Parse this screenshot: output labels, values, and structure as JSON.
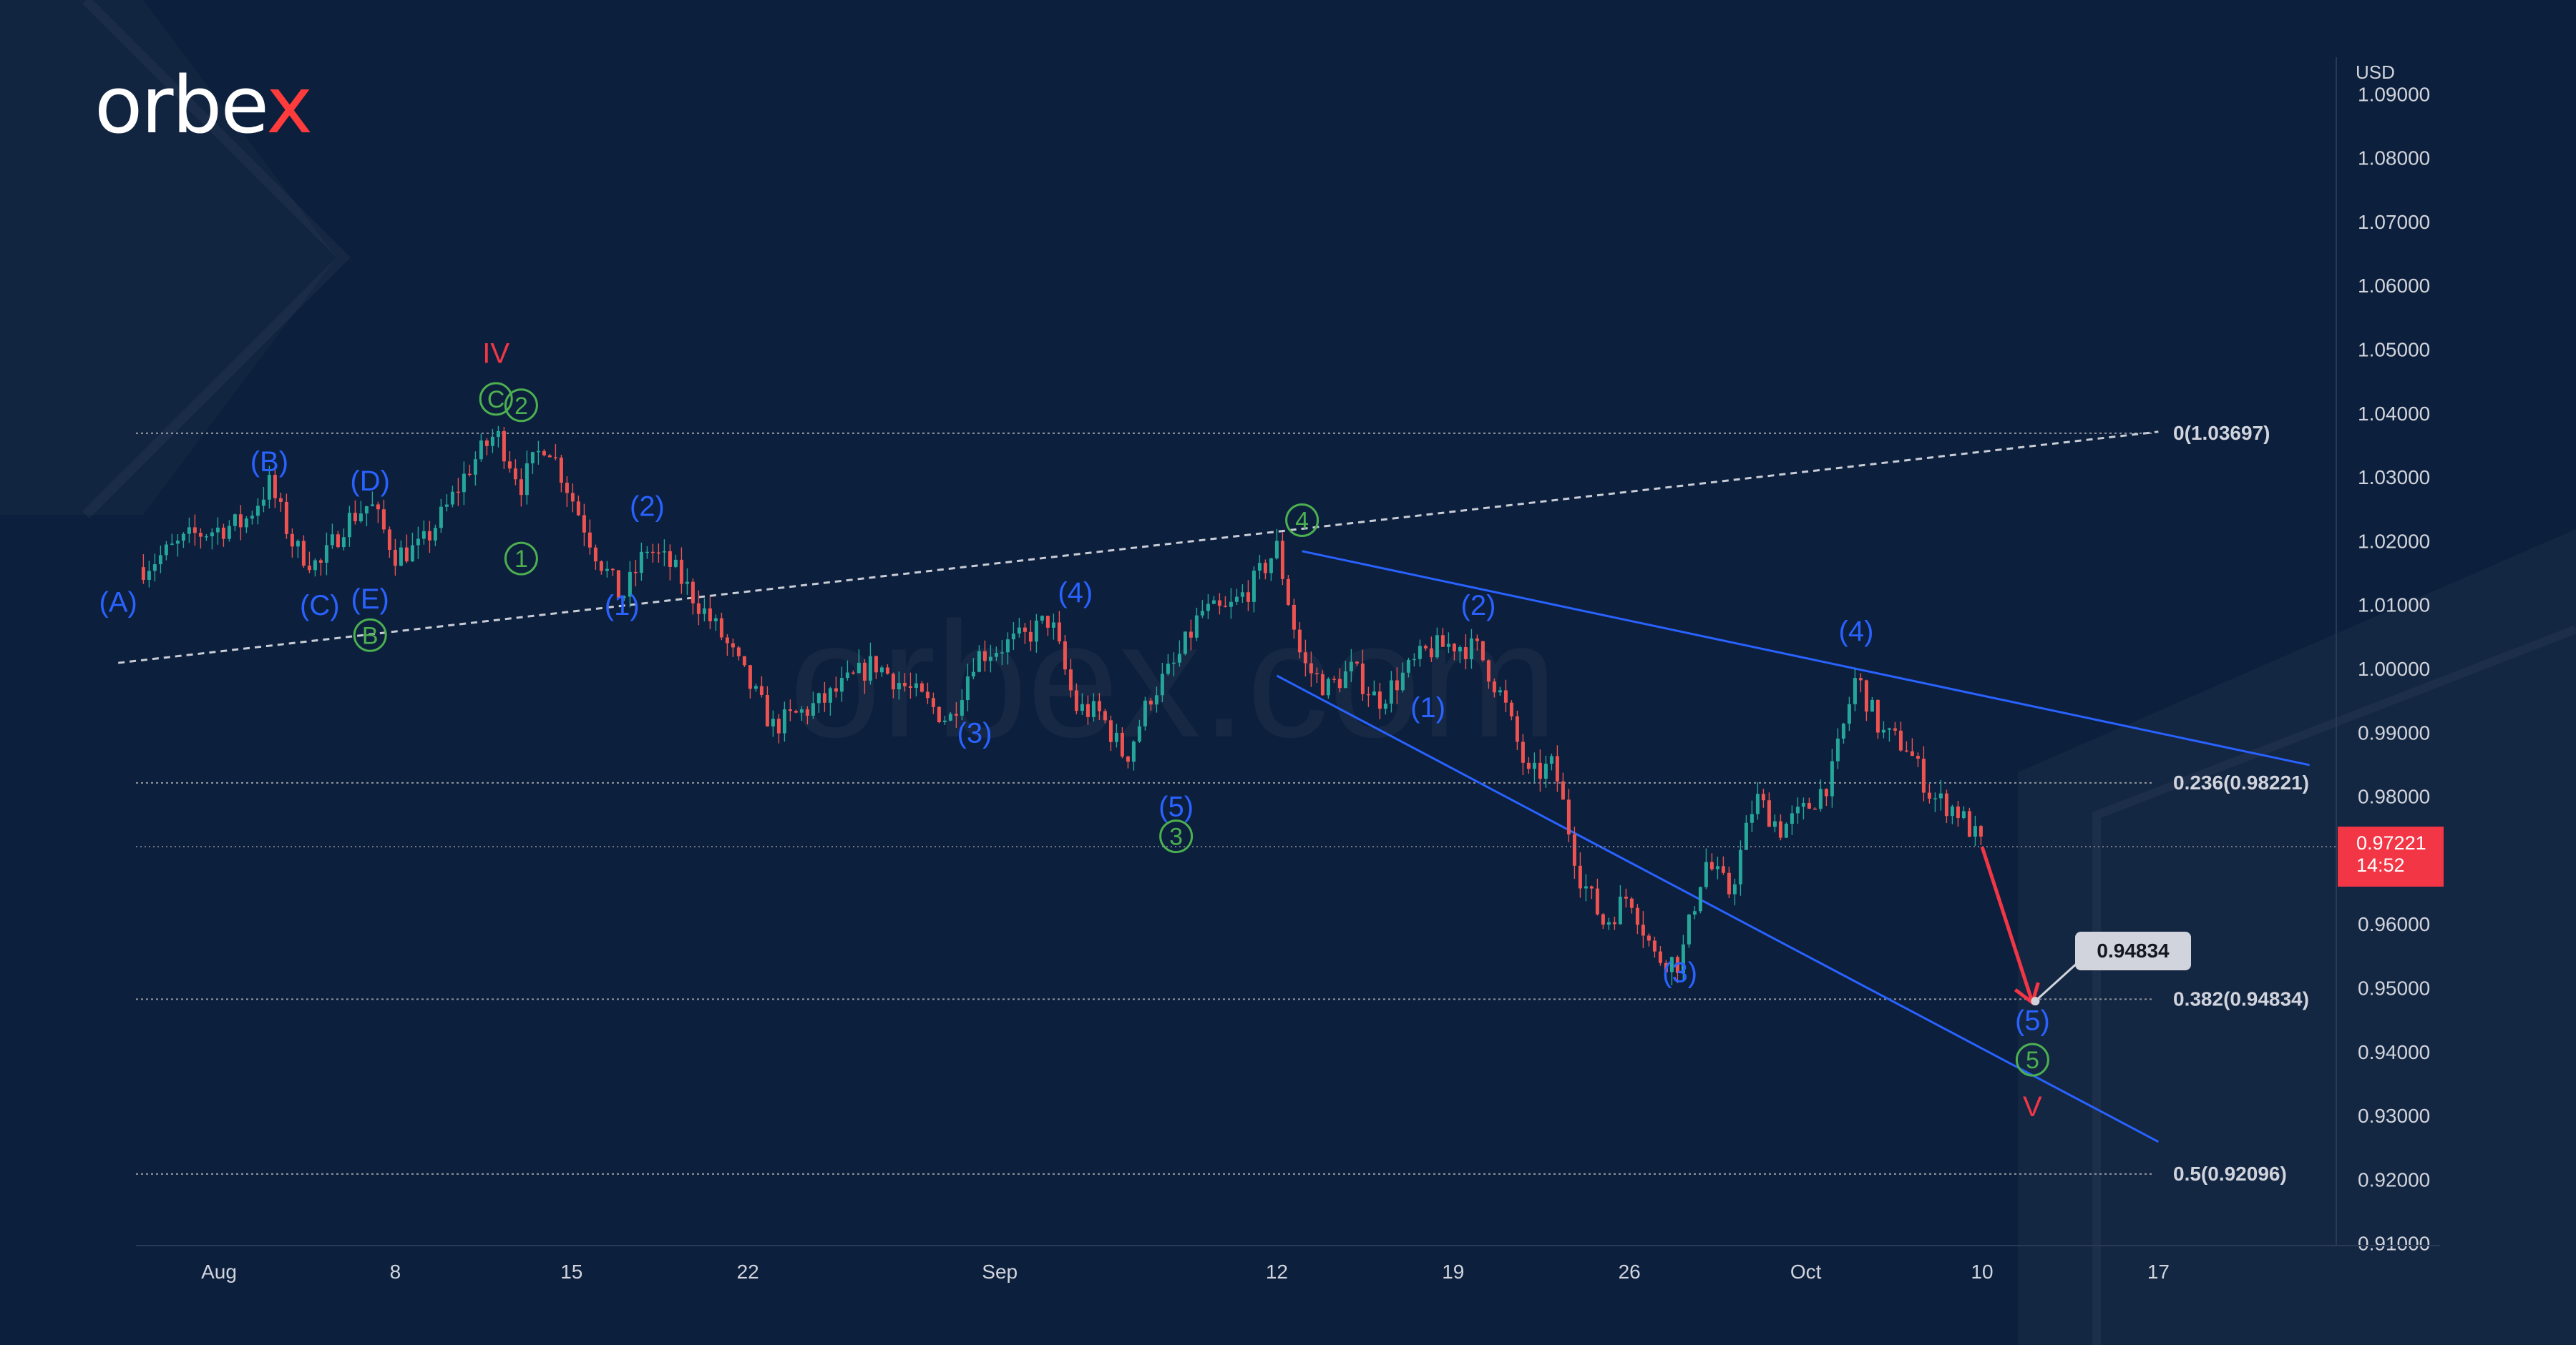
{
  "brand": {
    "logo_text_main": "orbe",
    "logo_text_x": "x",
    "watermark": "orbex.com"
  },
  "colors": {
    "background": "#0c1f3c",
    "candle_up": "#26a69a",
    "candle_down": "#ef5350",
    "wave_blue": "#2962ff",
    "wave_green": "#4caf50",
    "wave_red": "#f23645",
    "axis_text": "#d1d4dc",
    "fib_line": "#9598a1"
  },
  "chart_data": {
    "type": "candlestick",
    "currency_label": "USD",
    "ylim": [
      0.91,
      1.1
    ],
    "y_ticks": [
      "1.09000",
      "1.08000",
      "1.07000",
      "1.06000",
      "1.05000",
      "1.04000",
      "1.03000",
      "1.02000",
      "1.01000",
      "1.00000",
      "0.99000",
      "0.98000",
      "0.96000",
      "0.95000",
      "0.94000",
      "0.93000",
      "0.92000",
      "0.91000"
    ],
    "x_ticks": [
      "Aug",
      "8",
      "15",
      "22",
      "Sep",
      "12",
      "19",
      "26",
      "Oct",
      "10",
      "17"
    ],
    "last_price": {
      "value": "0.97221",
      "countdown": "14:52"
    },
    "target_label": "0.94834",
    "fib_levels": [
      {
        "label": "0(1.03697)",
        "value": 1.03697
      },
      {
        "label": "0.236(0.98221)",
        "value": 0.98221
      },
      {
        "label": "0.382(0.94834)",
        "value": 0.94834
      },
      {
        "label": "0.5(0.92096)",
        "value": 0.92096
      }
    ],
    "price_path": [
      [
        "Jul 29",
        1.016
      ],
      [
        "Jul 31",
        1.021
      ],
      [
        "Aug 2",
        1.023
      ],
      [
        "Aug 3",
        1.029
      ],
      [
        "Aug 4",
        1.019
      ],
      [
        "Aug 5",
        1.016
      ],
      [
        "Aug 6",
        1.023
      ],
      [
        "Aug 7",
        1.026
      ],
      [
        "Aug 8",
        1.018
      ],
      [
        "Aug 9",
        1.019
      ],
      [
        "Aug 10",
        1.025
      ],
      [
        "Aug 11",
        1.032
      ],
      [
        "Aug 12",
        1.037
      ],
      [
        "Aug 13",
        1.029
      ],
      [
        "Aug 14",
        1.036
      ],
      [
        "Aug 16",
        1.018
      ],
      [
        "Aug 17",
        1.011
      ],
      [
        "Aug 18",
        1.019
      ],
      [
        "Aug 19",
        1.016
      ],
      [
        "Aug 21",
        1.005
      ],
      [
        "Aug 23",
        0.991
      ],
      [
        "Aug 25",
        0.995
      ],
      [
        "Aug 27",
        1.001
      ],
      [
        "Aug 30",
        0.992
      ],
      [
        "Aug 31",
        1.002
      ],
      [
        "Sep 2",
        1.005
      ],
      [
        "Sep 3",
        1.008
      ],
      [
        "Sep 4",
        0.994
      ],
      [
        "Sep 5",
        0.993
      ],
      [
        "Sep 6",
        0.986
      ],
      [
        "Sep 7",
        0.996
      ],
      [
        "Sep 8",
        1.001
      ],
      [
        "Sep 9",
        1.009
      ],
      [
        "Sep 10",
        1.009
      ],
      [
        "Sep 11",
        1.013
      ],
      [
        "Sep 12",
        1.019
      ],
      [
        "Sep 13",
        1.001
      ],
      [
        "Sep 14",
        0.997
      ],
      [
        "Sep 15",
        1.0
      ],
      [
        "Sep 16",
        0.995
      ],
      [
        "Sep 18",
        1.003
      ],
      [
        "Sep 19",
        1.004
      ],
      [
        "Sep 20",
        1.003
      ],
      [
        "Sep 21",
        0.995
      ],
      [
        "Sep 22",
        0.983
      ],
      [
        "Sep 23",
        0.985
      ],
      [
        "Sep 24",
        0.968
      ],
      [
        "Sep 25",
        0.96
      ],
      [
        "Sep 26",
        0.965
      ],
      [
        "Sep 27",
        0.955
      ],
      [
        "Sep 28",
        0.954
      ],
      [
        "Sep 29",
        0.97
      ],
      [
        "Sep 30",
        0.965
      ],
      [
        "Oct 1",
        0.98
      ],
      [
        "Oct 2",
        0.975
      ],
      [
        "Oct 3",
        0.978
      ],
      [
        "Oct 4",
        0.983
      ],
      [
        "Oct 5",
        0.999
      ],
      [
        "Oct 6",
        0.99
      ],
      [
        "Oct 7",
        0.988
      ],
      [
        "Oct 8",
        0.98
      ],
      [
        "Oct 9",
        0.978
      ],
      [
        "Oct 10",
        0.9722
      ]
    ],
    "wave_labels": [
      {
        "text": "(A)",
        "color": "blue",
        "x": "Jul 28",
        "y": 1.009
      },
      {
        "text": "(B)",
        "color": "blue",
        "x": "Aug 3",
        "y": 1.031
      },
      {
        "text": "(C)",
        "color": "blue",
        "x": "Aug 5",
        "y": 1.0085
      },
      {
        "text": "(D)",
        "color": "blue",
        "x": "Aug 7",
        "y": 1.028
      },
      {
        "text": "(E)",
        "color": "blue",
        "x": "Aug 7",
        "y": 1.0095
      },
      {
        "text": "B",
        "color": "green",
        "circled": true,
        "x": "Aug 7",
        "y": 1.004
      },
      {
        "text": "IV",
        "color": "red",
        "x": "Aug 12",
        "y": 1.048
      },
      {
        "text": "C",
        "color": "green",
        "circled": true,
        "x": "Aug 12",
        "y": 1.041
      },
      {
        "text": "2",
        "color": "green",
        "circled": true,
        "x": "Aug 13",
        "y": 1.04
      },
      {
        "text": "1",
        "color": "green",
        "circled": true,
        "x": "Aug 13",
        "y": 1.016
      },
      {
        "text": "(2)",
        "color": "blue",
        "x": "Aug 18",
        "y": 1.024
      },
      {
        "text": "(1)",
        "color": "blue",
        "x": "Aug 17",
        "y": 1.0085
      },
      {
        "text": "(3)",
        "color": "blue",
        "x": "Aug 31",
        "y": 0.9885
      },
      {
        "text": "(4)",
        "color": "blue",
        "x": "Sep 4",
        "y": 1.0105
      },
      {
        "text": "(5)",
        "color": "blue",
        "x": "Sep 8",
        "y": 0.977
      },
      {
        "text": "3",
        "color": "green",
        "circled": true,
        "x": "Sep 8",
        "y": 0.9725
      },
      {
        "text": "4",
        "color": "green",
        "circled": true,
        "x": "Sep 13",
        "y": 1.022
      },
      {
        "text": "(2)",
        "color": "blue",
        "x": "Sep 20",
        "y": 1.0085
      },
      {
        "text": "(1)",
        "color": "blue",
        "x": "Sep 18",
        "y": 0.9925
      },
      {
        "text": "(3)",
        "color": "blue",
        "x": "Sep 28",
        "y": 0.951
      },
      {
        "text": "(4)",
        "color": "blue",
        "x": "Oct 5",
        "y": 1.0045
      },
      {
        "text": "(5)",
        "color": "blue",
        "x": "Oct 12",
        "y": 0.9435
      },
      {
        "text": "5",
        "color": "green",
        "circled": true,
        "x": "Oct 12",
        "y": 0.9375
      },
      {
        "text": "V",
        "color": "red",
        "x": "Oct 12",
        "y": 0.93
      }
    ],
    "projection": {
      "from": [
        "Oct 10",
        0.9722
      ],
      "to": [
        "Oct 12",
        0.9478
      ]
    },
    "trendlines": [
      {
        "style": "dashed",
        "from": [
          "Jul 28",
          1.001
        ],
        "to": [
          "Oct 17",
          1.0372
        ]
      },
      {
        "style": "solid",
        "from": [
          "Sep 13",
          1.0185
        ],
        "to": [
          "Oct 23",
          0.985
        ]
      },
      {
        "style": "solid",
        "from": [
          "Sep 12",
          0.999
        ],
        "to": [
          "Oct 17",
          0.926
        ]
      }
    ]
  }
}
